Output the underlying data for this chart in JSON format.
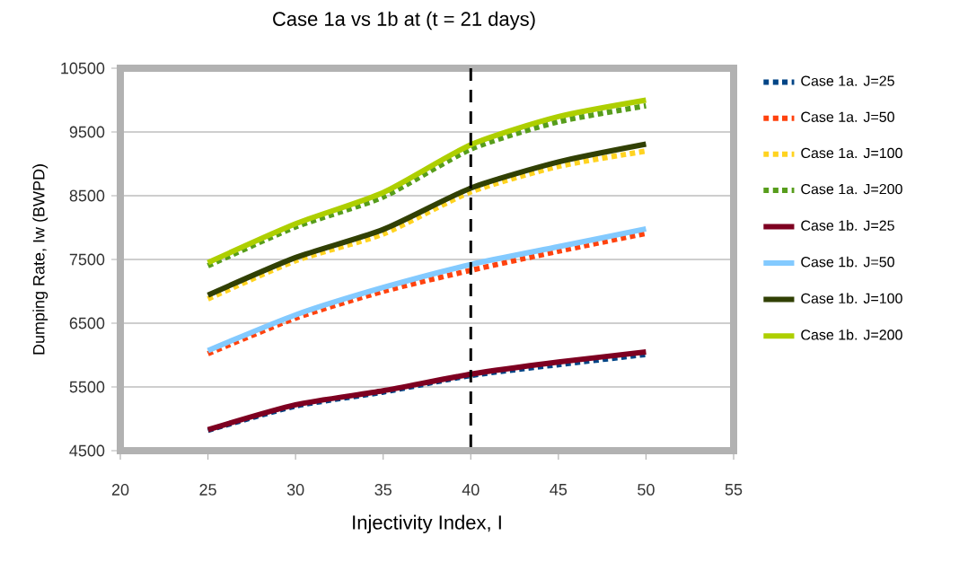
{
  "chart_data": {
    "type": "line",
    "title": "Case 1a vs 1b at (t = 21 days)",
    "xlabel": "Injectivity Index, I",
    "ylabel": "Dumping Rate, Iw (BWPD)",
    "x": [
      25,
      30,
      35,
      40,
      45,
      50
    ],
    "series": [
      {
        "name": "Case 1a. J=25",
        "color": "#004586",
        "line_style": "dotted",
        "values": [
          4820,
          5200,
          5420,
          5680,
          5850,
          6010
        ]
      },
      {
        "name": "Case 1a. J=50",
        "color": "#ff420e",
        "line_style": "dotted",
        "values": [
          6020,
          6580,
          7000,
          7330,
          7630,
          7910
        ]
      },
      {
        "name": "Case 1a. J=100",
        "color": "#ffd320",
        "line_style": "dotted",
        "values": [
          6880,
          7480,
          7900,
          8560,
          8960,
          9200
        ]
      },
      {
        "name": "Case 1a. J=200",
        "color": "#579d1c",
        "line_style": "dotted",
        "values": [
          7400,
          8010,
          8480,
          9230,
          9660,
          9910
        ]
      },
      {
        "name": "Case 1b. J=25",
        "color": "#7e0021",
        "line_style": "solid",
        "values": [
          4830,
          5220,
          5440,
          5700,
          5890,
          6050
        ]
      },
      {
        "name": "Case 1b. J=50",
        "color": "#83caff",
        "line_style": "solid",
        "values": [
          6070,
          6630,
          7060,
          7420,
          7700,
          7980
        ]
      },
      {
        "name": "Case 1b. J=100",
        "color": "#314004",
        "line_style": "solid",
        "values": [
          6940,
          7530,
          7970,
          8620,
          9030,
          9310
        ]
      },
      {
        "name": "Case 1b. J=200",
        "color": "#aecf00",
        "line_style": "solid",
        "values": [
          7450,
          8060,
          8550,
          9300,
          9740,
          10000
        ]
      }
    ],
    "xlim": [
      20,
      55
    ],
    "xticks": [
      20,
      25,
      30,
      35,
      40,
      45,
      50,
      55
    ],
    "ylim": [
      4500,
      10500
    ],
    "yticks": [
      4500,
      5500,
      6500,
      7500,
      8500,
      9500,
      10500
    ],
    "grid": "y",
    "legend": "right",
    "marker": "none",
    "ref_lines": [
      {
        "axis": "x",
        "value": 40,
        "color": "#000000",
        "line_style": "dashed"
      }
    ]
  }
}
